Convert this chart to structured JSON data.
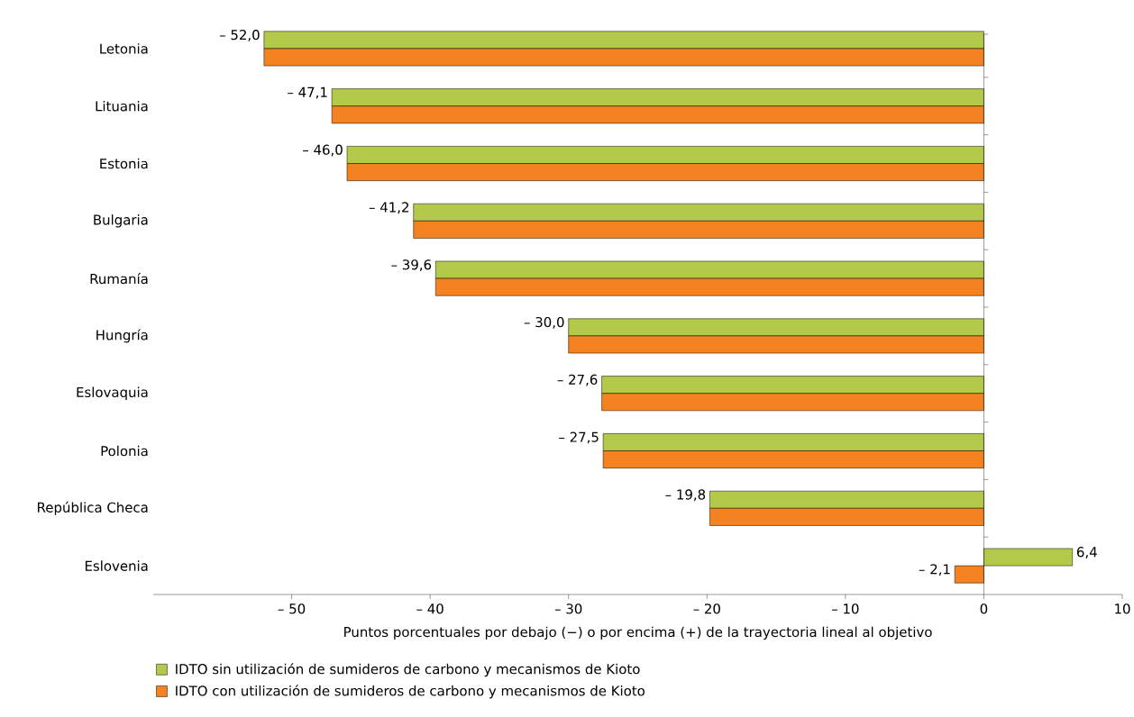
{
  "chart_data": {
    "type": "bar",
    "orientation": "horizontal",
    "xlabel": "Puntos porcentuales por debajo (−) o por encima (+) de la trayectoria lineal al objetivo",
    "categories": [
      "Letonia",
      "Lituania",
      "Estonia",
      "Bulgaria",
      "Rumanía",
      "Hungría",
      "Eslovaquia",
      "Polonia",
      "República Checa",
      "Eslovenia"
    ],
    "series": [
      {
        "name": "IDTO sin utilización de sumideros de carbono y mecanismos de Kioto",
        "color": "#b3c94a",
        "values": [
          -52.0,
          -47.1,
          -46.0,
          -41.2,
          -39.6,
          -30.0,
          -27.6,
          -27.5,
          -19.8,
          6.4
        ],
        "value_labels": [
          "– 52,0",
          "– 47,1",
          "– 46,0",
          "– 41,2",
          "– 39,6",
          "– 30,0",
          "– 27,6",
          "– 27,5",
          "– 19,8",
          "6,4"
        ]
      },
      {
        "name": "IDTO con utilización de sumideros de carbono y mecanismos de Kioto",
        "color": "#f58220",
        "values": [
          -52.0,
          -47.1,
          -46.0,
          -41.2,
          -39.6,
          -30.0,
          -27.6,
          -27.5,
          -19.8,
          -2.1
        ],
        "value_labels": [
          null,
          null,
          null,
          null,
          null,
          null,
          null,
          null,
          null,
          "– 2,1"
        ]
      }
    ],
    "xlim": [
      -60,
      10
    ],
    "xticks": [
      {
        "value": -50,
        "label": "– 50"
      },
      {
        "value": -40,
        "label": "– 40"
      },
      {
        "value": -30,
        "label": "– 30"
      },
      {
        "value": -20,
        "label": "– 20"
      },
      {
        "value": -10,
        "label": "– 10"
      },
      0,
      10
    ],
    "ref_lines": [
      {
        "axis": "x",
        "value": 0,
        "color": "#000000"
      }
    ],
    "grid": false,
    "legend": "bottom"
  }
}
